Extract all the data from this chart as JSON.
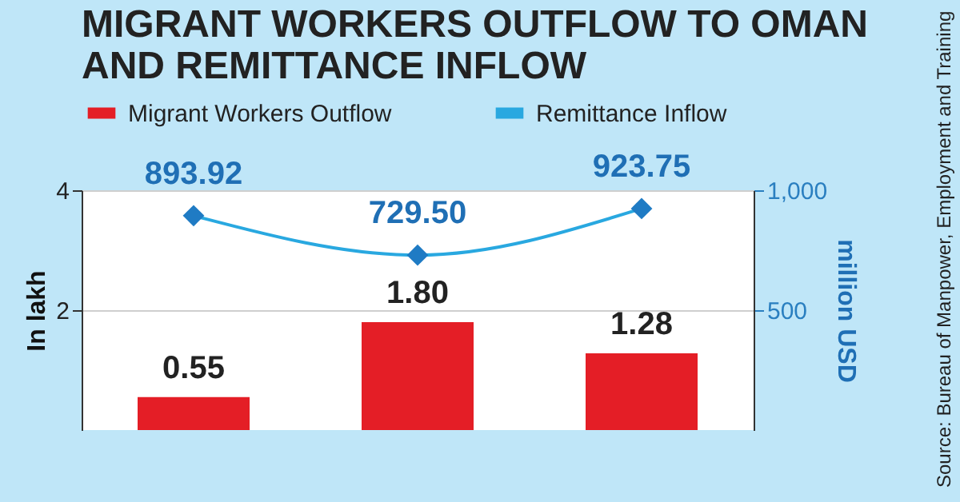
{
  "chart_data": {
    "type": "bar",
    "title": "MIGRANT WORKERS OUTFLOW TO OMAN AND REMITTANCE INFLOW",
    "categories": [
      null,
      null,
      null
    ],
    "series": [
      {
        "name": "Migrant Workers Outflow",
        "color": "#e41e26",
        "values": [
          0.55,
          1.8,
          1.28
        ],
        "value_labels": [
          "0.55",
          "1.80",
          "1.28"
        ]
      },
      {
        "name": "Remittance Inflow",
        "type": "line",
        "axis": "y2",
        "color": "#29a8e0",
        "values": [
          893.92,
          729.5,
          923.75
        ],
        "value_labels": [
          "893.92",
          "729.50",
          "923.75"
        ]
      }
    ],
    "ylabel": "In lakh",
    "y2label": "million USD",
    "ylim": [
      0,
      4
    ],
    "yticks": [
      2,
      4
    ],
    "y2lim": [
      0,
      1000
    ],
    "y2ticks": [
      500,
      {
        "value": 1000,
        "label": "1,000"
      }
    ],
    "annotations": [
      "Source: Bureau of Manpower, Employment and Training"
    ],
    "grid": "y",
    "legend": "top left",
    "marker": "diamond"
  }
}
